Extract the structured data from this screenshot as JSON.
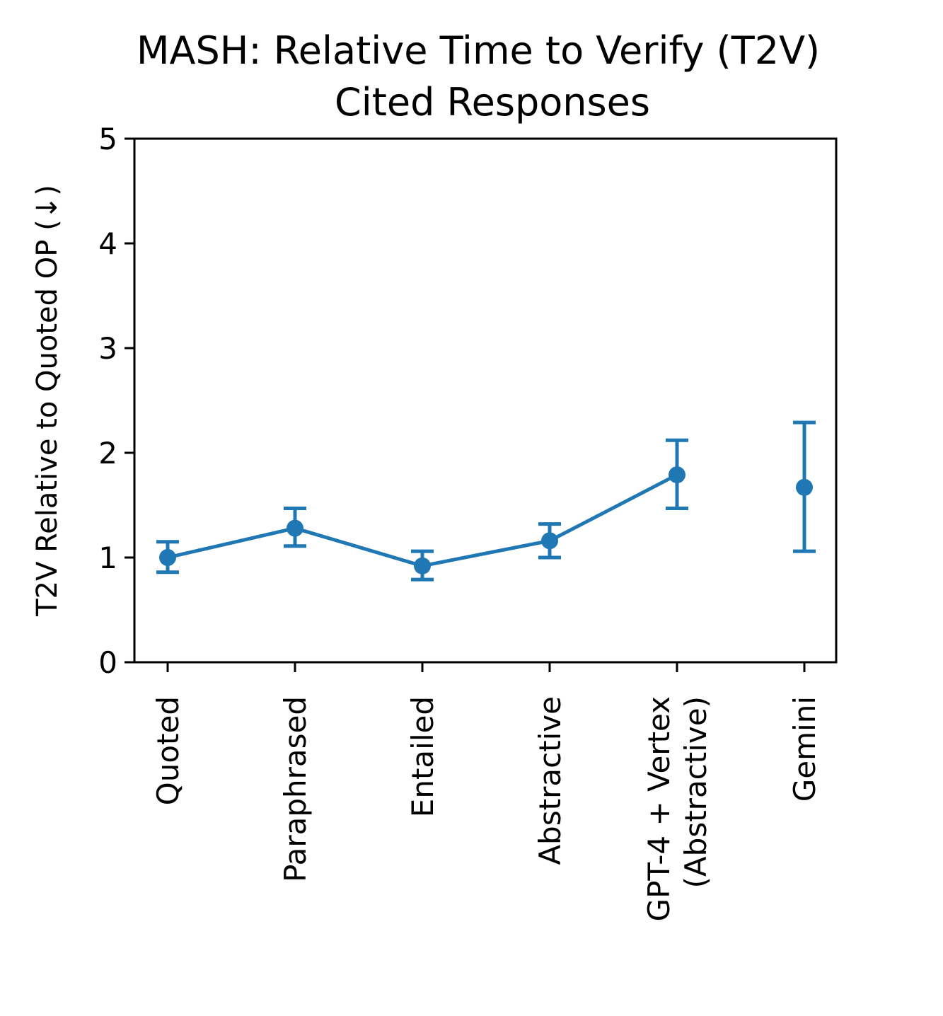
{
  "chart_data": {
    "type": "line",
    "title": [
      "MASH: Relative Time to Verify (T2V)",
      "Cited Responses"
    ],
    "ylabel": "T2V Relative to Quoted OP (↓)",
    "xlabel": "",
    "ylim": [
      0,
      5
    ],
    "yticks": [
      "0",
      "1",
      "2",
      "3",
      "4",
      "5"
    ],
    "categories": [
      [
        "Quoted"
      ],
      [
        "Paraphrased"
      ],
      [
        "Entailed"
      ],
      [
        "Abstractive"
      ],
      [
        "GPT-4 + Vertex",
        "(Abstractive)"
      ],
      [
        "Gemini"
      ]
    ],
    "series": [
      {
        "values": [
          1.0,
          1.28,
          0.92,
          1.16,
          1.79,
          1.67
        ],
        "err_low": [
          0.86,
          1.11,
          0.79,
          1.0,
          1.47,
          1.06
        ],
        "err_high": [
          1.15,
          1.47,
          1.06,
          1.32,
          2.12,
          2.29
        ],
        "connected": [
          true,
          true,
          true,
          true,
          true,
          false
        ]
      }
    ],
    "grid": false,
    "color": "#1f77b4"
  }
}
